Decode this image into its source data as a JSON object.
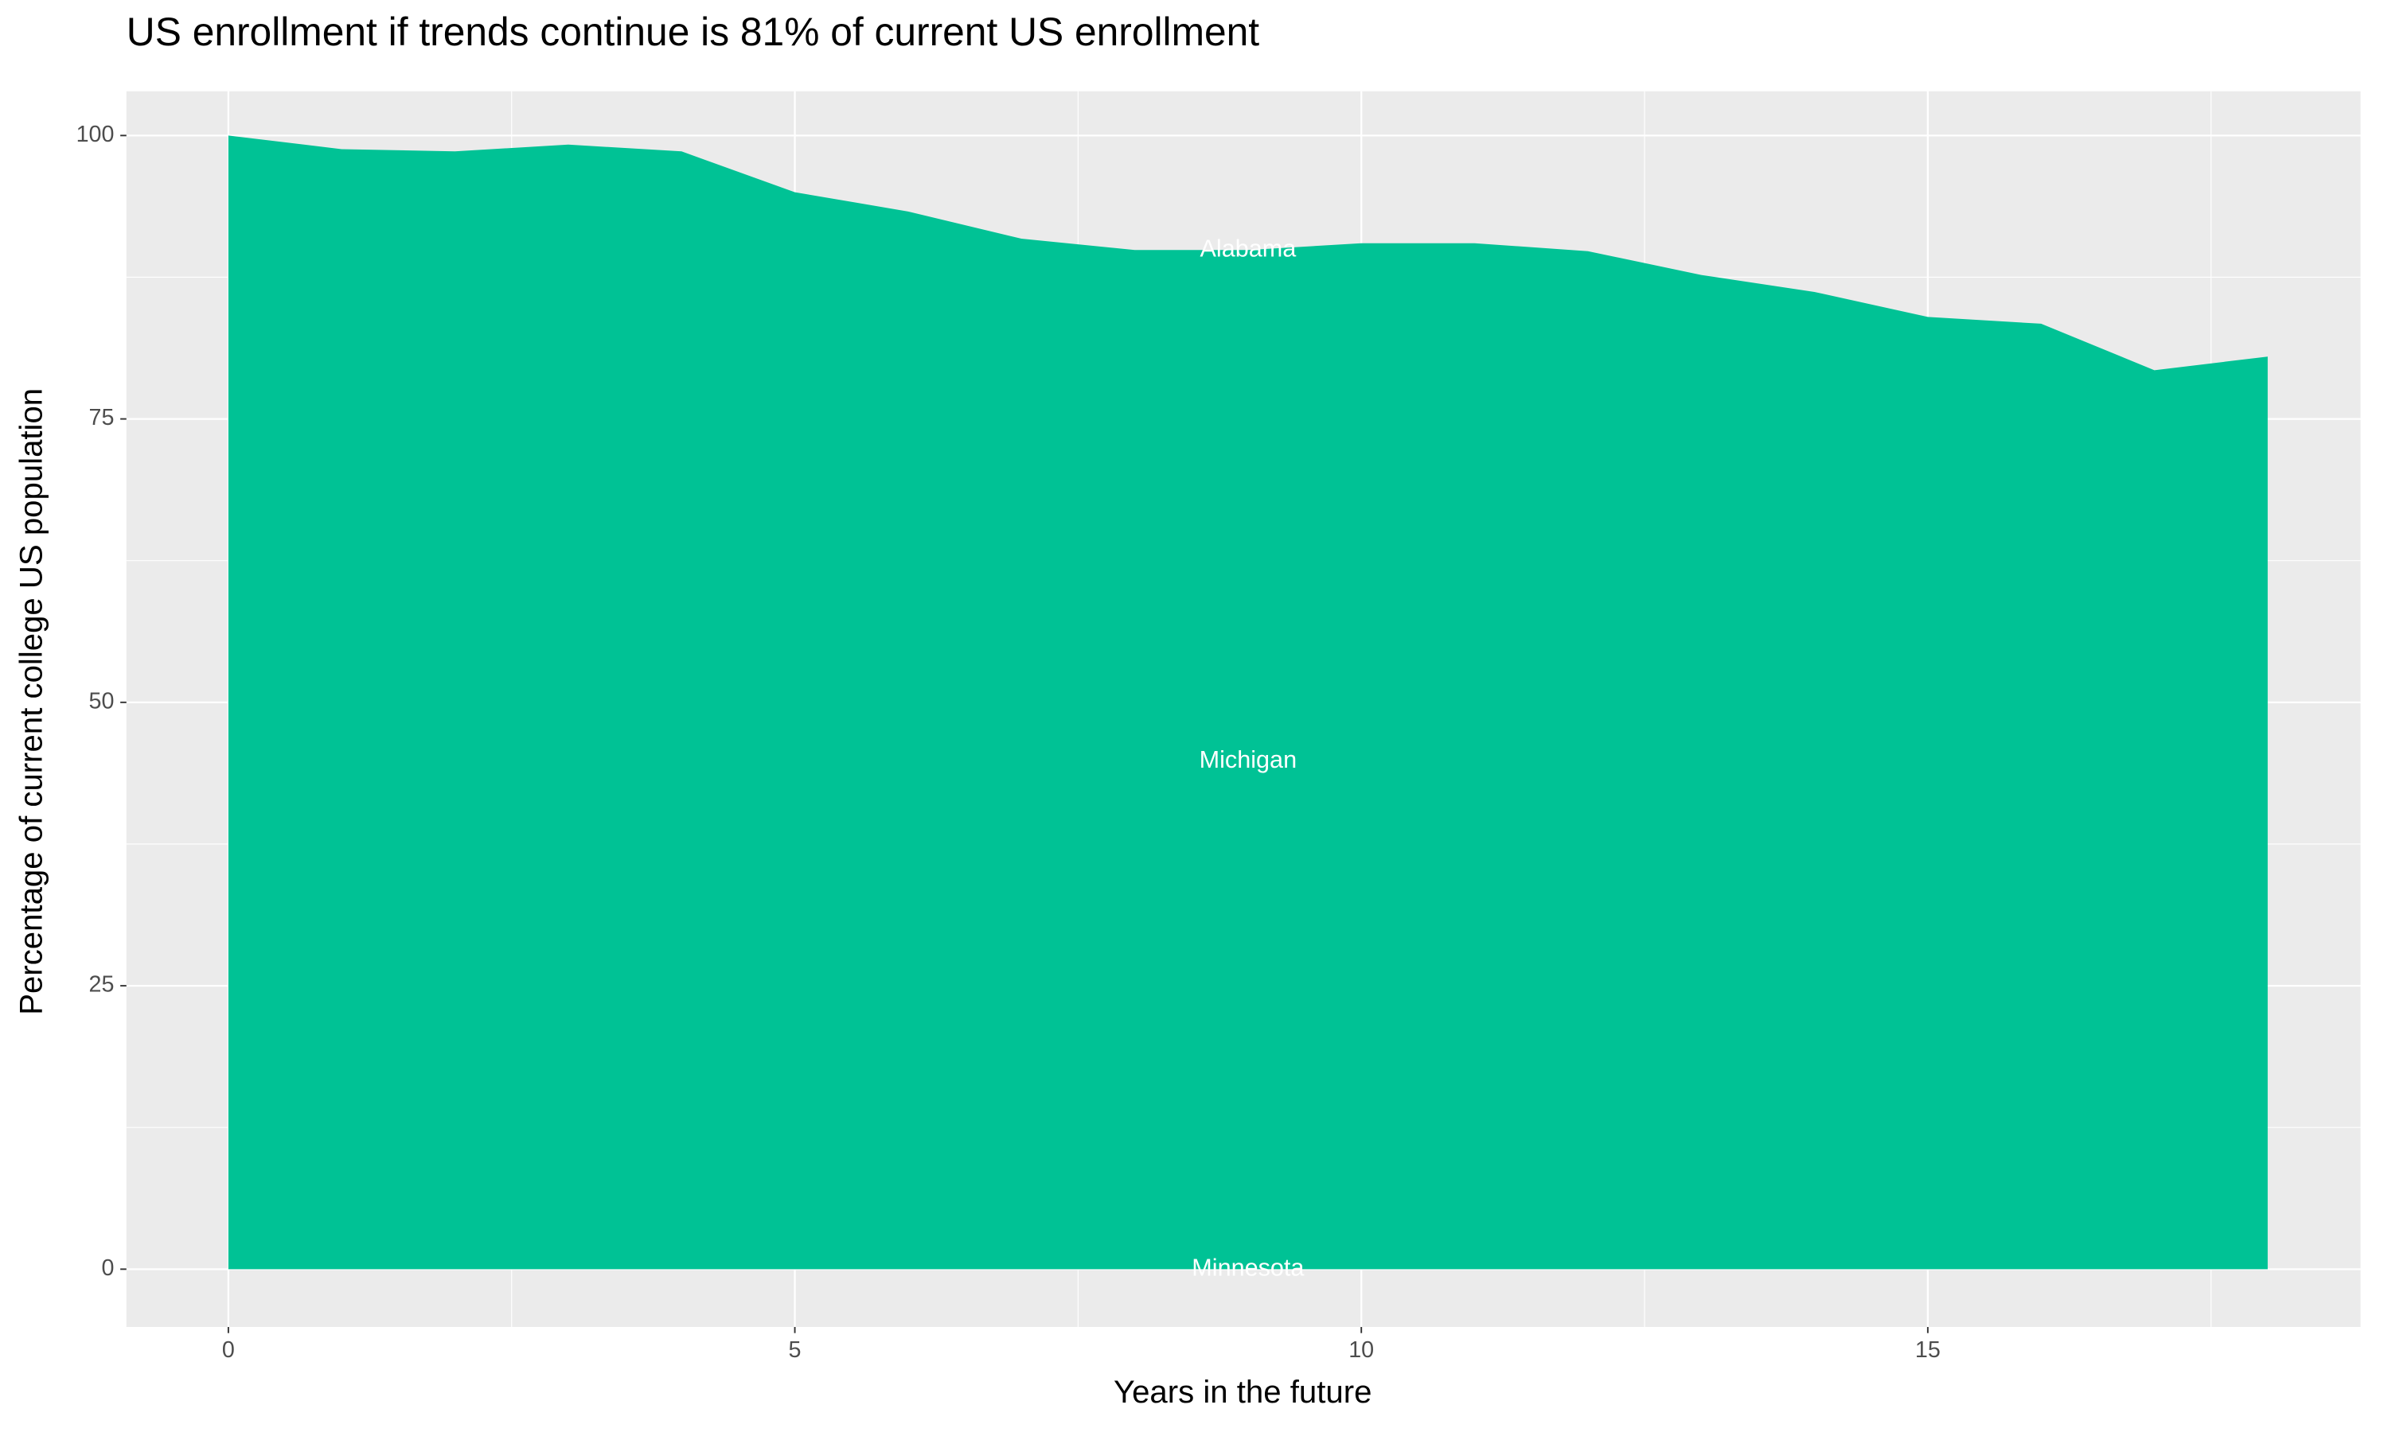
{
  "chart_data": {
    "type": "area",
    "title": "US enrollment if trends continue is 81% of current US enrollment",
    "x_label": "Years in the future",
    "y_label": "Percentage of current college US population",
    "x": [
      0,
      1,
      2,
      3,
      4,
      5,
      6,
      7,
      8,
      9,
      10,
      11,
      12,
      13,
      14,
      15,
      16,
      17,
      18
    ],
    "values": [
      100,
      98.8,
      98.6,
      99.2,
      98.6,
      95.0,
      93.3,
      90.9,
      89.9,
      89.9,
      90.5,
      90.5,
      89.8,
      87.7,
      86.2,
      84.0,
      83.4,
      79.3,
      80.5
    ],
    "color": "#00c295",
    "xlim": [
      -0.9,
      18.82
    ],
    "ylim": [
      -5.1,
      103.9
    ],
    "xticks": [
      0,
      5,
      10,
      15
    ],
    "yticks": [
      0,
      25,
      50,
      75,
      100
    ],
    "grid": true,
    "annotations": [
      {
        "text": "Alabama",
        "x": 9,
        "y": 89.9
      },
      {
        "text": "Michigan",
        "x": 9,
        "y": 44.8
      },
      {
        "text": "Minnesota",
        "x": 9,
        "y": 0
      }
    ]
  }
}
